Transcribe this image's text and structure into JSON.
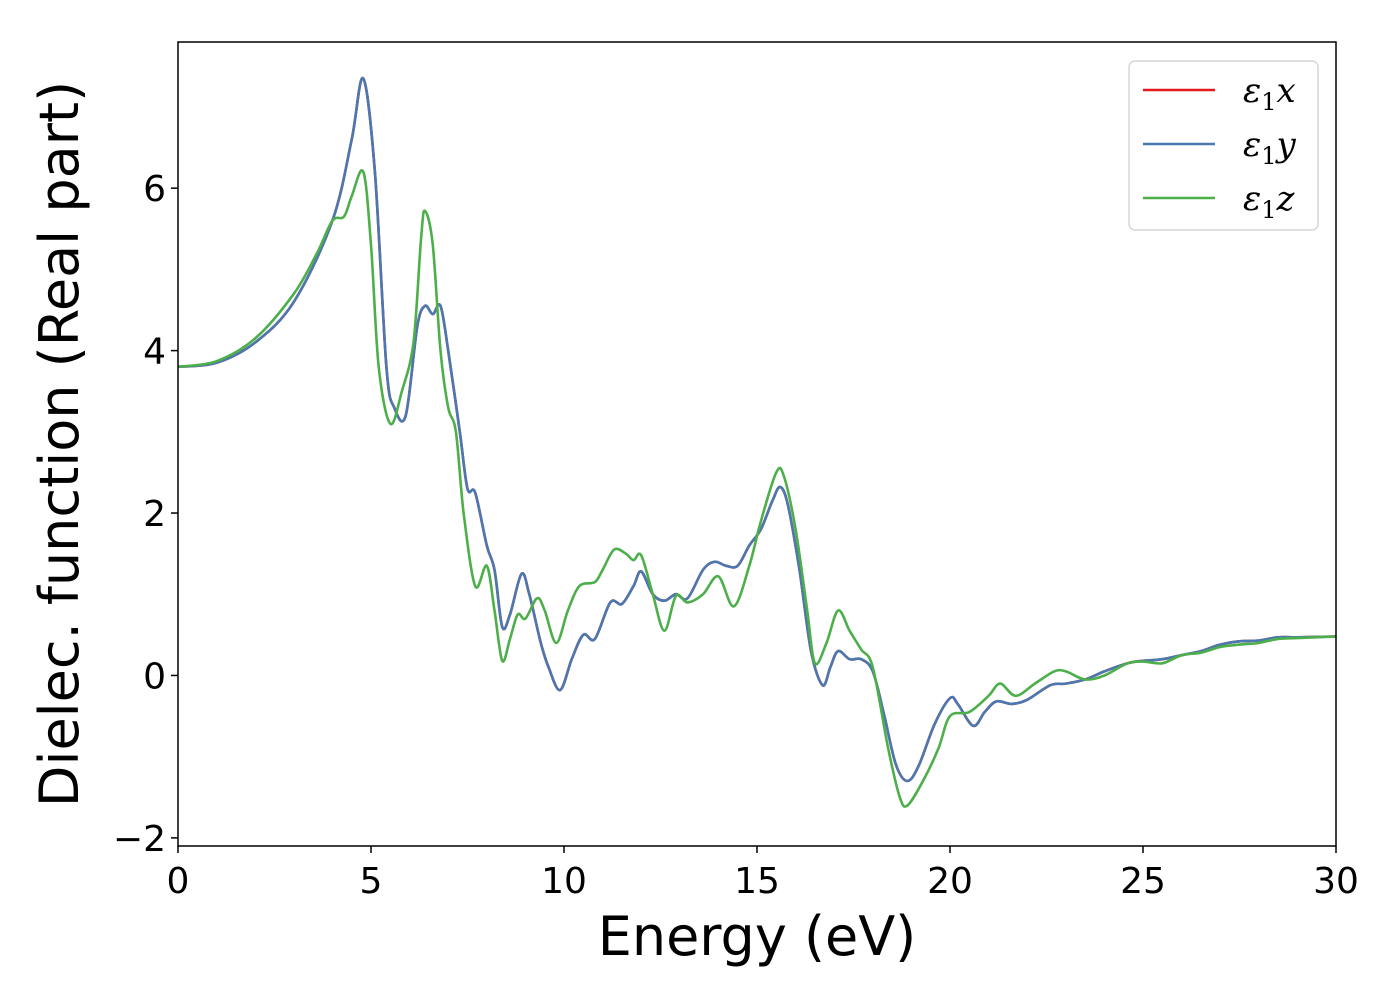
{
  "chart_data": {
    "type": "line",
    "title": "",
    "xlabel": "Energy (eV)",
    "ylabel": "Dielec. function (Real part)",
    "xlim": [
      0,
      30
    ],
    "ylim": [
      -2.1,
      7.8
    ],
    "xticks": [
      0,
      5,
      10,
      15,
      20,
      25,
      30
    ],
    "yticks": [
      -2,
      0,
      2,
      4,
      6
    ],
    "xtick_labels": [
      "0",
      "5",
      "10",
      "15",
      "20",
      "25",
      "30"
    ],
    "ytick_labels": [
      "−2",
      "0",
      "2",
      "4",
      "6"
    ],
    "grid": false,
    "legend_position": "top-right",
    "series": [
      {
        "name": "ε1x",
        "legend_main": "ε",
        "legend_sub": "1",
        "legend_var": "x",
        "color": "#e41a1c",
        "points": [
          [
            0,
            3.8
          ],
          [
            1,
            3.85
          ],
          [
            2,
            4.1
          ],
          [
            3,
            4.6
          ],
          [
            4,
            5.6
          ],
          [
            4.5,
            6.6
          ],
          [
            4.8,
            7.35
          ],
          [
            5.1,
            6.2
          ],
          [
            5.4,
            3.8
          ],
          [
            5.6,
            3.3
          ],
          [
            5.9,
            3.2
          ],
          [
            6.2,
            4.3
          ],
          [
            6.4,
            4.55
          ],
          [
            6.6,
            4.45
          ],
          [
            6.8,
            4.55
          ],
          [
            7.0,
            4.0
          ],
          [
            7.3,
            3.0
          ],
          [
            7.5,
            2.3
          ],
          [
            7.7,
            2.25
          ],
          [
            8.0,
            1.6
          ],
          [
            8.2,
            1.3
          ],
          [
            8.4,
            0.6
          ],
          [
            8.6,
            0.75
          ],
          [
            8.9,
            1.25
          ],
          [
            9.1,
            1.0
          ],
          [
            9.4,
            0.4
          ],
          [
            9.6,
            0.1
          ],
          [
            9.9,
            -0.18
          ],
          [
            10.2,
            0.2
          ],
          [
            10.5,
            0.5
          ],
          [
            10.8,
            0.45
          ],
          [
            11.2,
            0.9
          ],
          [
            11.5,
            0.88
          ],
          [
            11.8,
            1.1
          ],
          [
            12.0,
            1.28
          ],
          [
            12.3,
            1.0
          ],
          [
            12.6,
            0.92
          ],
          [
            12.9,
            1.0
          ],
          [
            13.2,
            0.95
          ],
          [
            13.6,
            1.3
          ],
          [
            13.9,
            1.4
          ],
          [
            14.2,
            1.35
          ],
          [
            14.5,
            1.35
          ],
          [
            14.8,
            1.6
          ],
          [
            15.1,
            1.8
          ],
          [
            15.4,
            2.15
          ],
          [
            15.6,
            2.32
          ],
          [
            15.8,
            2.1
          ],
          [
            16.1,
            1.3
          ],
          [
            16.4,
            0.3
          ],
          [
            16.7,
            -0.12
          ],
          [
            16.9,
            0.1
          ],
          [
            17.1,
            0.3
          ],
          [
            17.4,
            0.2
          ],
          [
            17.7,
            0.2
          ],
          [
            18.0,
            0.05
          ],
          [
            18.3,
            -0.5
          ],
          [
            18.6,
            -1.1
          ],
          [
            18.9,
            -1.3
          ],
          [
            19.2,
            -1.1
          ],
          [
            19.6,
            -0.6
          ],
          [
            20.0,
            -0.28
          ],
          [
            20.2,
            -0.35
          ],
          [
            20.6,
            -0.62
          ],
          [
            20.9,
            -0.45
          ],
          [
            21.2,
            -0.32
          ],
          [
            21.6,
            -0.35
          ],
          [
            22.0,
            -0.3
          ],
          [
            22.6,
            -0.12
          ],
          [
            23.0,
            -0.1
          ],
          [
            23.5,
            -0.05
          ],
          [
            24.0,
            0.05
          ],
          [
            24.6,
            0.15
          ],
          [
            25.0,
            0.18
          ],
          [
            25.5,
            0.2
          ],
          [
            26.0,
            0.25
          ],
          [
            26.5,
            0.3
          ],
          [
            27.0,
            0.38
          ],
          [
            27.5,
            0.42
          ],
          [
            28.0,
            0.43
          ],
          [
            28.5,
            0.47
          ],
          [
            29.0,
            0.47
          ],
          [
            30.0,
            0.48
          ]
        ]
      },
      {
        "name": "ε1y",
        "legend_main": "ε",
        "legend_sub": "1",
        "legend_var": "y",
        "color": "#4a78b0",
        "points": [
          [
            0,
            3.8
          ],
          [
            1,
            3.85
          ],
          [
            2,
            4.1
          ],
          [
            3,
            4.6
          ],
          [
            4,
            5.6
          ],
          [
            4.5,
            6.6
          ],
          [
            4.8,
            7.35
          ],
          [
            5.1,
            6.2
          ],
          [
            5.4,
            3.8
          ],
          [
            5.6,
            3.3
          ],
          [
            5.9,
            3.2
          ],
          [
            6.2,
            4.3
          ],
          [
            6.4,
            4.55
          ],
          [
            6.6,
            4.45
          ],
          [
            6.8,
            4.55
          ],
          [
            7.0,
            4.0
          ],
          [
            7.3,
            3.0
          ],
          [
            7.5,
            2.3
          ],
          [
            7.7,
            2.25
          ],
          [
            8.0,
            1.6
          ],
          [
            8.2,
            1.3
          ],
          [
            8.4,
            0.6
          ],
          [
            8.6,
            0.75
          ],
          [
            8.9,
            1.25
          ],
          [
            9.1,
            1.0
          ],
          [
            9.4,
            0.4
          ],
          [
            9.6,
            0.1
          ],
          [
            9.9,
            -0.18
          ],
          [
            10.2,
            0.2
          ],
          [
            10.5,
            0.5
          ],
          [
            10.8,
            0.45
          ],
          [
            11.2,
            0.9
          ],
          [
            11.5,
            0.88
          ],
          [
            11.8,
            1.1
          ],
          [
            12.0,
            1.28
          ],
          [
            12.3,
            1.0
          ],
          [
            12.6,
            0.92
          ],
          [
            12.9,
            1.0
          ],
          [
            13.2,
            0.95
          ],
          [
            13.6,
            1.3
          ],
          [
            13.9,
            1.4
          ],
          [
            14.2,
            1.35
          ],
          [
            14.5,
            1.35
          ],
          [
            14.8,
            1.6
          ],
          [
            15.1,
            1.8
          ],
          [
            15.4,
            2.15
          ],
          [
            15.6,
            2.32
          ],
          [
            15.8,
            2.1
          ],
          [
            16.1,
            1.3
          ],
          [
            16.4,
            0.3
          ],
          [
            16.7,
            -0.12
          ],
          [
            16.9,
            0.1
          ],
          [
            17.1,
            0.3
          ],
          [
            17.4,
            0.2
          ],
          [
            17.7,
            0.2
          ],
          [
            18.0,
            0.05
          ],
          [
            18.3,
            -0.5
          ],
          [
            18.6,
            -1.1
          ],
          [
            18.9,
            -1.3
          ],
          [
            19.2,
            -1.1
          ],
          [
            19.6,
            -0.6
          ],
          [
            20.0,
            -0.28
          ],
          [
            20.2,
            -0.35
          ],
          [
            20.6,
            -0.62
          ],
          [
            20.9,
            -0.45
          ],
          [
            21.2,
            -0.32
          ],
          [
            21.6,
            -0.35
          ],
          [
            22.0,
            -0.3
          ],
          [
            22.6,
            -0.12
          ],
          [
            23.0,
            -0.1
          ],
          [
            23.5,
            -0.05
          ],
          [
            24.0,
            0.05
          ],
          [
            24.6,
            0.15
          ],
          [
            25.0,
            0.18
          ],
          [
            25.5,
            0.2
          ],
          [
            26.0,
            0.25
          ],
          [
            26.5,
            0.3
          ],
          [
            27.0,
            0.38
          ],
          [
            27.5,
            0.42
          ],
          [
            28.0,
            0.43
          ],
          [
            28.5,
            0.47
          ],
          [
            29.0,
            0.47
          ],
          [
            30.0,
            0.48
          ]
        ]
      },
      {
        "name": "ε1z",
        "legend_main": "ε",
        "legend_sub": "1",
        "legend_var": "z",
        "color": "#4daf4a",
        "points": [
          [
            0,
            3.8
          ],
          [
            1,
            3.87
          ],
          [
            2,
            4.15
          ],
          [
            3,
            4.7
          ],
          [
            3.6,
            5.2
          ],
          [
            4.0,
            5.6
          ],
          [
            4.3,
            5.65
          ],
          [
            4.5,
            5.9
          ],
          [
            4.8,
            6.2
          ],
          [
            5.0,
            5.3
          ],
          [
            5.2,
            3.8
          ],
          [
            5.5,
            3.1
          ],
          [
            5.8,
            3.5
          ],
          [
            6.1,
            4.1
          ],
          [
            6.3,
            5.4
          ],
          [
            6.4,
            5.72
          ],
          [
            6.6,
            5.3
          ],
          [
            6.8,
            4.0
          ],
          [
            7.0,
            3.3
          ],
          [
            7.2,
            3.0
          ],
          [
            7.4,
            2.0
          ],
          [
            7.7,
            1.1
          ],
          [
            8.0,
            1.35
          ],
          [
            8.2,
            0.8
          ],
          [
            8.4,
            0.18
          ],
          [
            8.6,
            0.45
          ],
          [
            8.8,
            0.75
          ],
          [
            9.0,
            0.7
          ],
          [
            9.3,
            0.95
          ],
          [
            9.5,
            0.8
          ],
          [
            9.8,
            0.4
          ],
          [
            10.1,
            0.8
          ],
          [
            10.4,
            1.1
          ],
          [
            10.8,
            1.15
          ],
          [
            11.0,
            1.3
          ],
          [
            11.3,
            1.55
          ],
          [
            11.6,
            1.5
          ],
          [
            11.8,
            1.42
          ],
          [
            12.0,
            1.48
          ],
          [
            12.3,
            1.0
          ],
          [
            12.6,
            0.55
          ],
          [
            12.9,
            0.98
          ],
          [
            13.2,
            0.9
          ],
          [
            13.6,
            1.0
          ],
          [
            14.0,
            1.22
          ],
          [
            14.4,
            0.85
          ],
          [
            14.8,
            1.35
          ],
          [
            15.1,
            1.9
          ],
          [
            15.5,
            2.5
          ],
          [
            15.7,
            2.45
          ],
          [
            16.0,
            1.8
          ],
          [
            16.3,
            0.8
          ],
          [
            16.5,
            0.15
          ],
          [
            16.8,
            0.4
          ],
          [
            17.1,
            0.8
          ],
          [
            17.4,
            0.55
          ],
          [
            17.7,
            0.32
          ],
          [
            18.0,
            0.1
          ],
          [
            18.4,
            -0.9
          ],
          [
            18.7,
            -1.5
          ],
          [
            18.9,
            -1.6
          ],
          [
            19.3,
            -1.3
          ],
          [
            19.7,
            -0.9
          ],
          [
            20.0,
            -0.5
          ],
          [
            20.5,
            -0.45
          ],
          [
            21.0,
            -0.25
          ],
          [
            21.3,
            -0.1
          ],
          [
            21.7,
            -0.25
          ],
          [
            22.2,
            -0.1
          ],
          [
            22.7,
            0.05
          ],
          [
            23.0,
            0.05
          ],
          [
            23.5,
            -0.05
          ],
          [
            24.0,
            0.0
          ],
          [
            24.6,
            0.15
          ],
          [
            25.0,
            0.17
          ],
          [
            25.5,
            0.15
          ],
          [
            26.0,
            0.25
          ],
          [
            26.5,
            0.28
          ],
          [
            27.0,
            0.35
          ],
          [
            27.5,
            0.38
          ],
          [
            28.0,
            0.4
          ],
          [
            28.5,
            0.45
          ],
          [
            29.0,
            0.46
          ],
          [
            30.0,
            0.48
          ]
        ]
      }
    ]
  }
}
